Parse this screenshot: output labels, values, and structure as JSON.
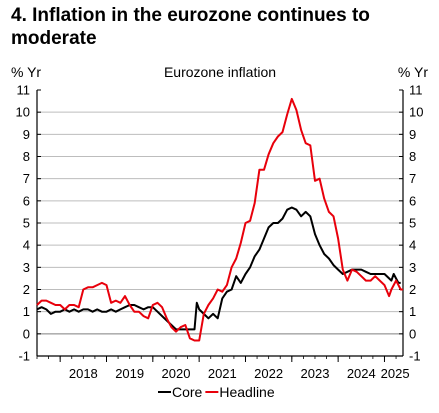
{
  "title_lines": [
    "4. Inflation in the eurozone continues to",
    "moderate"
  ],
  "chart_data": {
    "type": "line",
    "title": "4. Inflation in the eurozone continues to moderate",
    "subtitle": "Eurozone inflation",
    "ylabel_left": "% Yr",
    "ylabel_right": "% Yr",
    "ylim": [
      -1,
      11
    ],
    "yticks": [
      -1,
      0,
      1,
      2,
      3,
      4,
      5,
      6,
      7,
      8,
      9,
      10,
      11
    ],
    "xlim": [
      2017.5,
      2025.4
    ],
    "xtick_labels": [
      "2018",
      "2019",
      "2020",
      "2021",
      "2022",
      "2023",
      "2024",
      "2025"
    ],
    "grid": true,
    "legend": "bottom-center",
    "series": [
      {
        "name": "Core",
        "color": "#000000",
        "points": [
          [
            2017.5,
            1.1
          ],
          [
            2017.6,
            1.2
          ],
          [
            2017.7,
            1.1
          ],
          [
            2017.8,
            0.9
          ],
          [
            2017.9,
            1.0
          ],
          [
            2018.0,
            1.0
          ],
          [
            2018.1,
            1.1
          ],
          [
            2018.2,
            1.0
          ],
          [
            2018.3,
            1.1
          ],
          [
            2018.4,
            1.0
          ],
          [
            2018.5,
            1.1
          ],
          [
            2018.6,
            1.1
          ],
          [
            2018.7,
            1.0
          ],
          [
            2018.8,
            1.1
          ],
          [
            2018.9,
            1.0
          ],
          [
            2019.0,
            1.0
          ],
          [
            2019.1,
            1.1
          ],
          [
            2019.2,
            1.0
          ],
          [
            2019.3,
            1.1
          ],
          [
            2019.4,
            1.2
          ],
          [
            2019.5,
            1.3
          ],
          [
            2019.6,
            1.3
          ],
          [
            2019.7,
            1.2
          ],
          [
            2019.8,
            1.1
          ],
          [
            2019.9,
            1.2
          ],
          [
            2020.0,
            1.2
          ],
          [
            2020.1,
            1.0
          ],
          [
            2020.2,
            0.8
          ],
          [
            2020.3,
            0.6
          ],
          [
            2020.4,
            0.4
          ],
          [
            2020.5,
            0.2
          ],
          [
            2020.6,
            0.2
          ],
          [
            2020.7,
            0.2
          ],
          [
            2020.8,
            0.2
          ],
          [
            2020.9,
            0.2
          ],
          [
            2020.95,
            1.4
          ],
          [
            2021.0,
            1.1
          ],
          [
            2021.1,
            0.9
          ],
          [
            2021.2,
            0.7
          ],
          [
            2021.3,
            0.9
          ],
          [
            2021.4,
            0.7
          ],
          [
            2021.5,
            1.6
          ],
          [
            2021.6,
            1.9
          ],
          [
            2021.7,
            2.0
          ],
          [
            2021.8,
            2.6
          ],
          [
            2021.9,
            2.3
          ],
          [
            2022.0,
            2.7
          ],
          [
            2022.1,
            3.0
          ],
          [
            2022.2,
            3.5
          ],
          [
            2022.3,
            3.8
          ],
          [
            2022.4,
            4.3
          ],
          [
            2022.5,
            4.8
          ],
          [
            2022.6,
            5.0
          ],
          [
            2022.7,
            5.0
          ],
          [
            2022.8,
            5.2
          ],
          [
            2022.9,
            5.6
          ],
          [
            2023.0,
            5.7
          ],
          [
            2023.1,
            5.6
          ],
          [
            2023.2,
            5.3
          ],
          [
            2023.3,
            5.5
          ],
          [
            2023.4,
            5.3
          ],
          [
            2023.5,
            4.5
          ],
          [
            2023.6,
            4.0
          ],
          [
            2023.7,
            3.6
          ],
          [
            2023.8,
            3.4
          ],
          [
            2023.9,
            3.1
          ],
          [
            2024.0,
            2.9
          ],
          [
            2024.1,
            2.7
          ],
          [
            2024.2,
            2.8
          ],
          [
            2024.3,
            2.9
          ],
          [
            2024.4,
            2.9
          ],
          [
            2024.5,
            2.9
          ],
          [
            2024.6,
            2.8
          ],
          [
            2024.7,
            2.7
          ],
          [
            2024.8,
            2.7
          ],
          [
            2024.9,
            2.7
          ],
          [
            2025.0,
            2.7
          ],
          [
            2025.1,
            2.5
          ],
          [
            2025.15,
            2.4
          ],
          [
            2025.2,
            2.7
          ],
          [
            2025.3,
            2.3
          ],
          [
            2025.35,
            2.3
          ]
        ]
      },
      {
        "name": "Headline",
        "color": "#e8000b",
        "points": [
          [
            2017.5,
            1.3
          ],
          [
            2017.6,
            1.5
          ],
          [
            2017.7,
            1.5
          ],
          [
            2017.8,
            1.4
          ],
          [
            2017.9,
            1.3
          ],
          [
            2018.0,
            1.3
          ],
          [
            2018.1,
            1.1
          ],
          [
            2018.2,
            1.3
          ],
          [
            2018.3,
            1.3
          ],
          [
            2018.4,
            1.2
          ],
          [
            2018.5,
            2.0
          ],
          [
            2018.6,
            2.1
          ],
          [
            2018.7,
            2.1
          ],
          [
            2018.8,
            2.2
          ],
          [
            2018.9,
            2.3
          ],
          [
            2019.0,
            2.2
          ],
          [
            2019.1,
            1.4
          ],
          [
            2019.2,
            1.5
          ],
          [
            2019.3,
            1.4
          ],
          [
            2019.4,
            1.7
          ],
          [
            2019.5,
            1.3
          ],
          [
            2019.6,
            1.0
          ],
          [
            2019.7,
            1.0
          ],
          [
            2019.8,
            0.8
          ],
          [
            2019.9,
            0.7
          ],
          [
            2020.0,
            1.3
          ],
          [
            2020.1,
            1.4
          ],
          [
            2020.2,
            1.2
          ],
          [
            2020.3,
            0.7
          ],
          [
            2020.4,
            0.3
          ],
          [
            2020.5,
            0.1
          ],
          [
            2020.6,
            0.3
          ],
          [
            2020.7,
            0.4
          ],
          [
            2020.8,
            -0.2
          ],
          [
            2020.9,
            -0.3
          ],
          [
            2021.0,
            -0.3
          ],
          [
            2021.1,
            0.9
          ],
          [
            2021.2,
            1.3
          ],
          [
            2021.3,
            1.6
          ],
          [
            2021.4,
            2.0
          ],
          [
            2021.5,
            1.9
          ],
          [
            2021.6,
            2.2
          ],
          [
            2021.7,
            3.0
          ],
          [
            2021.8,
            3.4
          ],
          [
            2021.9,
            4.1
          ],
          [
            2022.0,
            5.0
          ],
          [
            2022.1,
            5.1
          ],
          [
            2022.2,
            5.9
          ],
          [
            2022.3,
            7.4
          ],
          [
            2022.4,
            7.4
          ],
          [
            2022.5,
            8.1
          ],
          [
            2022.6,
            8.6
          ],
          [
            2022.7,
            8.9
          ],
          [
            2022.8,
            9.1
          ],
          [
            2022.9,
            9.9
          ],
          [
            2023.0,
            10.6
          ],
          [
            2023.1,
            10.1
          ],
          [
            2023.2,
            9.2
          ],
          [
            2023.3,
            8.6
          ],
          [
            2023.4,
            8.5
          ],
          [
            2023.5,
            6.9
          ],
          [
            2023.6,
            7.0
          ],
          [
            2023.7,
            6.1
          ],
          [
            2023.8,
            5.5
          ],
          [
            2023.9,
            5.3
          ],
          [
            2024.0,
            4.3
          ],
          [
            2024.1,
            2.9
          ],
          [
            2024.2,
            2.4
          ],
          [
            2024.3,
            2.9
          ],
          [
            2024.4,
            2.8
          ],
          [
            2024.5,
            2.6
          ],
          [
            2024.6,
            2.4
          ],
          [
            2024.7,
            2.4
          ],
          [
            2024.8,
            2.6
          ],
          [
            2024.9,
            2.4
          ],
          [
            2025.0,
            2.2
          ],
          [
            2025.1,
            1.7
          ],
          [
            2025.15,
            2.0
          ],
          [
            2025.2,
            2.2
          ],
          [
            2025.25,
            2.4
          ],
          [
            2025.3,
            2.2
          ],
          [
            2025.35,
            2.0
          ],
          [
            2025.4,
            2.0
          ]
        ]
      }
    ]
  }
}
